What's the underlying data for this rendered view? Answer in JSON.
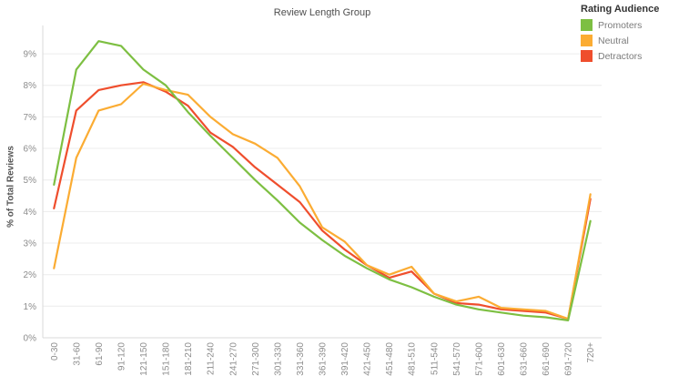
{
  "chart_data": {
    "type": "line",
    "title": "Review Length Group",
    "xlabel": "",
    "ylabel": "% of Total Reviews",
    "legend_title": "Rating Audience",
    "legend_position": "top-right",
    "grid": true,
    "ylim": [
      0,
      9.9
    ],
    "yticks": [
      "0%",
      "1%",
      "2%",
      "3%",
      "4%",
      "5%",
      "6%",
      "7%",
      "8%",
      "9%"
    ],
    "categories": [
      "0-30",
      "31-60",
      "61-90",
      "91-120",
      "121-150",
      "151-180",
      "181-210",
      "211-240",
      "241-270",
      "271-300",
      "301-330",
      "331-360",
      "361-390",
      "391-420",
      "421-450",
      "451-480",
      "481-510",
      "511-540",
      "541-570",
      "571-600",
      "601-630",
      "631-660",
      "661-690",
      "691-720",
      "720+"
    ],
    "series": [
      {
        "name": "Promoters",
        "color": "#7dbf42",
        "values": [
          4.85,
          8.5,
          9.4,
          9.25,
          8.5,
          8.0,
          7.15,
          6.4,
          5.7,
          5.0,
          4.35,
          3.65,
          3.1,
          2.6,
          2.2,
          1.85,
          1.6,
          1.3,
          1.05,
          0.9,
          0.8,
          0.7,
          0.65,
          0.55,
          3.7
        ]
      },
      {
        "name": "Neutral",
        "color": "#fbac33",
        "values": [
          2.2,
          5.7,
          7.2,
          7.4,
          8.05,
          7.85,
          7.7,
          7.0,
          6.45,
          6.15,
          5.7,
          4.8,
          3.5,
          3.05,
          2.3,
          2.0,
          2.25,
          1.4,
          1.15,
          1.3,
          0.95,
          0.9,
          0.85,
          0.6,
          4.55
        ]
      },
      {
        "name": "Detractors",
        "color": "#ef4e2d",
        "values": [
          4.1,
          7.2,
          7.85,
          8.0,
          8.1,
          7.8,
          7.35,
          6.5,
          6.05,
          5.4,
          4.85,
          4.3,
          3.4,
          2.8,
          2.3,
          1.9,
          2.1,
          1.4,
          1.1,
          1.05,
          0.9,
          0.85,
          0.8,
          0.6,
          4.4
        ]
      }
    ]
  }
}
